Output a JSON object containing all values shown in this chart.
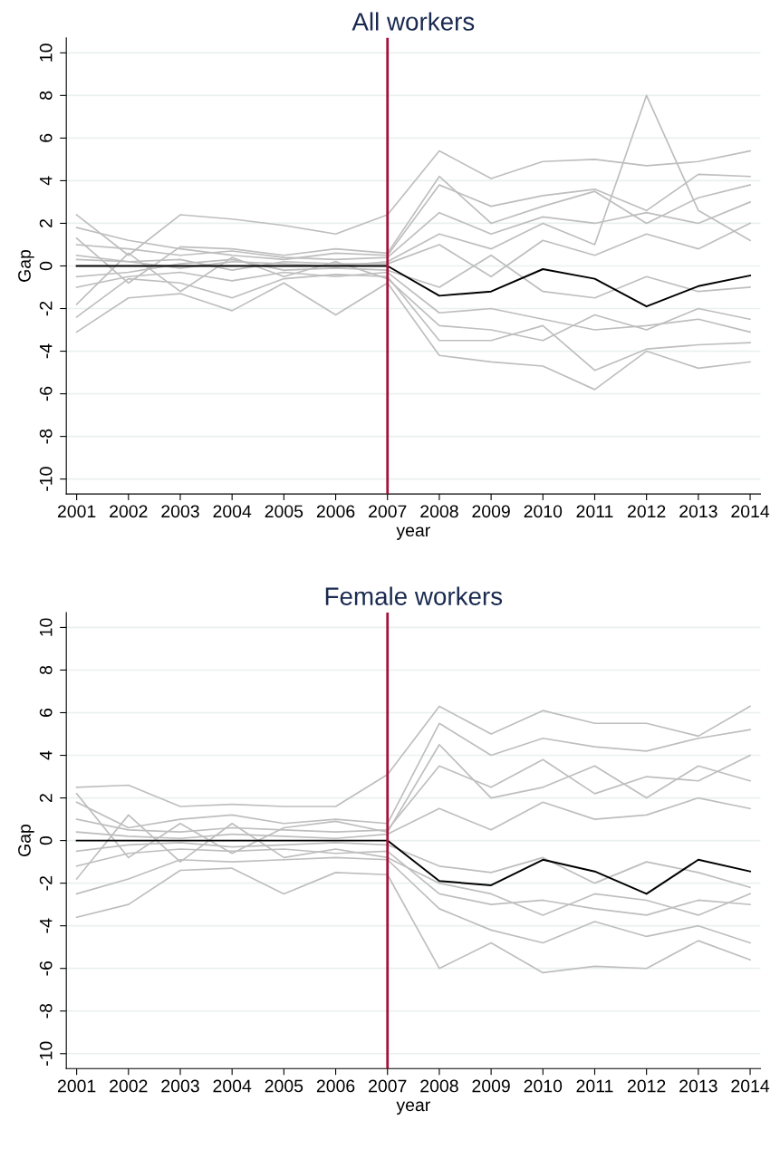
{
  "chart_data": [
    {
      "type": "line",
      "title": "All workers",
      "xlabel": "year",
      "ylabel": "Gap",
      "x": [
        2001,
        2002,
        2003,
        2004,
        2005,
        2006,
        2007,
        2008,
        2009,
        2010,
        2011,
        2012,
        2013,
        2014
      ],
      "xlim": [
        2000.8,
        2014.2
      ],
      "xticks": [
        2001,
        2002,
        2003,
        2004,
        2005,
        2006,
        2007,
        2008,
        2009,
        2010,
        2011,
        2012,
        2013,
        2014
      ],
      "ylim": [
        -10.7,
        10.7
      ],
      "yticks": [
        -10,
        -8,
        -6,
        -4,
        -2,
        0,
        2,
        4,
        6,
        8,
        10
      ],
      "grid": "y",
      "legend": false,
      "marker": "none",
      "line_style": "solid",
      "ref_lines": [
        {
          "axis": "x",
          "value": 2007,
          "color": "#a3123a"
        }
      ],
      "series": [
        {
          "color": "#bebebe",
          "values": [
            2.4,
            0.5,
            2.4,
            2.2,
            1.9,
            1.5,
            2.4,
            5.4,
            4.1,
            4.9,
            5.0,
            4.7,
            4.9,
            5.4
          ]
        },
        {
          "color": "#bebebe",
          "values": [
            -3.1,
            -1.5,
            -1.3,
            -2.1,
            -0.8,
            -2.3,
            -0.8,
            -4.2,
            -4.5,
            -4.7,
            -5.8,
            -4.0,
            -4.8,
            -4.5
          ]
        },
        {
          "color": "#bebebe",
          "values": [
            0.3,
            0.2,
            -0.1,
            0.2,
            0.1,
            0.0,
            0.2,
            1.5,
            0.8,
            2.0,
            1.0,
            8.0,
            2.6,
            1.2
          ]
        },
        {
          "color": "#bebebe",
          "values": [
            1.8,
            1.2,
            0.8,
            0.5,
            0.3,
            0.6,
            0.5,
            3.8,
            2.8,
            3.3,
            3.6,
            2.6,
            4.3,
            4.2
          ]
        },
        {
          "color": "#bebebe",
          "values": [
            -2.4,
            -0.6,
            -0.8,
            -1.5,
            -0.6,
            -0.4,
            -0.5,
            -3.5,
            -3.5,
            -2.8,
            -4.9,
            -3.9,
            -3.7,
            -3.6
          ]
        },
        {
          "color": "#bebebe",
          "values": [
            1.0,
            0.8,
            0.5,
            0.7,
            0.4,
            0.3,
            0.4,
            2.5,
            1.5,
            2.3,
            2.0,
            2.5,
            2.0,
            3.0
          ]
        },
        {
          "color": "#bebebe",
          "values": [
            -1.0,
            -0.5,
            -0.3,
            -0.7,
            -0.3,
            -0.5,
            -0.3,
            -2.2,
            -2.0,
            -2.5,
            -3.0,
            -2.8,
            -2.5,
            -3.1
          ]
        },
        {
          "color": "#bebebe",
          "values": [
            0.5,
            0.2,
            0.3,
            -0.2,
            0.2,
            0.1,
            0.1,
            1.0,
            -0.5,
            1.2,
            0.5,
            1.5,
            0.8,
            2.0
          ]
        },
        {
          "color": "#bebebe",
          "values": [
            -0.5,
            -0.3,
            0.1,
            0.3,
            -0.2,
            -0.1,
            -0.2,
            -1.0,
            0.5,
            -1.2,
            -1.5,
            -0.5,
            -1.2,
            -1.0
          ]
        },
        {
          "color": "#bebebe",
          "values": [
            1.3,
            -0.8,
            0.9,
            0.8,
            0.5,
            0.8,
            0.6,
            4.2,
            2.0,
            2.8,
            3.5,
            2.0,
            3.2,
            3.8
          ]
        },
        {
          "color": "#bebebe",
          "values": [
            -1.8,
            0.6,
            -1.2,
            0.4,
            -0.5,
            0.2,
            -0.6,
            -2.8,
            -3.0,
            -3.5,
            -2.3,
            -3.0,
            -2.0,
            -2.5
          ]
        },
        {
          "color": "#000000",
          "values": [
            0,
            0,
            0,
            0,
            0,
            0,
            0,
            -1.4,
            -1.2,
            -0.15,
            -0.6,
            -1.9,
            -0.95,
            -0.45
          ]
        }
      ]
    },
    {
      "type": "line",
      "title": "Female workers",
      "xlabel": "year",
      "ylabel": "Gap",
      "x": [
        2001,
        2002,
        2003,
        2004,
        2005,
        2006,
        2007,
        2008,
        2009,
        2010,
        2011,
        2012,
        2013,
        2014
      ],
      "xlim": [
        2000.8,
        2014.2
      ],
      "xticks": [
        2001,
        2002,
        2003,
        2004,
        2005,
        2006,
        2007,
        2008,
        2009,
        2010,
        2011,
        2012,
        2013,
        2014
      ],
      "ylim": [
        -10.7,
        10.7
      ],
      "yticks": [
        -10,
        -8,
        -6,
        -4,
        -2,
        0,
        2,
        4,
        6,
        8,
        10
      ],
      "grid": "y",
      "legend": false,
      "marker": "none",
      "line_style": "solid",
      "ref_lines": [
        {
          "axis": "x",
          "value": 2007,
          "color": "#a3123a"
        }
      ],
      "series": [
        {
          "color": "#bebebe",
          "values": [
            2.5,
            2.6,
            1.6,
            1.7,
            1.6,
            1.6,
            3.1,
            6.3,
            5.0,
            6.1,
            5.5,
            5.5,
            4.9,
            6.3
          ]
        },
        {
          "color": "#bebebe",
          "values": [
            -3.6,
            -3.0,
            -1.4,
            -1.3,
            -2.5,
            -1.5,
            -1.6,
            -6.0,
            -4.8,
            -6.2,
            -5.9,
            -6.0,
            -4.7,
            -5.6
          ]
        },
        {
          "color": "#bebebe",
          "values": [
            1.8,
            0.6,
            1.0,
            1.2,
            0.8,
            1.0,
            0.8,
            5.5,
            4.0,
            4.8,
            4.4,
            4.2,
            4.8,
            5.2
          ]
        },
        {
          "color": "#bebebe",
          "values": [
            -2.5,
            -1.8,
            -0.9,
            -1.0,
            -0.9,
            -0.8,
            -0.9,
            -3.2,
            -4.2,
            -4.8,
            -3.8,
            -4.5,
            -4.0,
            -4.8
          ]
        },
        {
          "color": "#bebebe",
          "values": [
            1.0,
            0.5,
            0.4,
            0.6,
            0.5,
            0.4,
            0.5,
            3.5,
            2.5,
            3.8,
            2.2,
            3.0,
            2.8,
            4.0
          ]
        },
        {
          "color": "#bebebe",
          "values": [
            -1.2,
            -0.6,
            -0.4,
            -0.5,
            -0.4,
            -0.6,
            -0.5,
            -2.5,
            -3.0,
            -2.8,
            -3.2,
            -3.5,
            -2.8,
            -3.0
          ]
        },
        {
          "color": "#bebebe",
          "values": [
            0.4,
            0.2,
            0.1,
            0.3,
            0.2,
            0.1,
            0.3,
            1.5,
            0.5,
            1.8,
            1.0,
            1.2,
            2.0,
            1.5
          ]
        },
        {
          "color": "#bebebe",
          "values": [
            -0.5,
            -0.2,
            -0.1,
            -0.3,
            -0.2,
            -0.1,
            -0.2,
            -1.2,
            -1.5,
            -0.8,
            -2.0,
            -1.0,
            -1.5,
            -2.2
          ]
        },
        {
          "color": "#bebebe",
          "values": [
            2.2,
            -0.8,
            0.8,
            -0.6,
            0.6,
            0.9,
            0.4,
            4.5,
            2.0,
            2.5,
            3.5,
            2.0,
            3.5,
            2.8
          ]
        },
        {
          "color": "#bebebe",
          "values": [
            -1.8,
            1.2,
            -1.0,
            0.8,
            -0.8,
            -0.4,
            -0.8,
            -2.0,
            -2.5,
            -3.5,
            -2.5,
            -2.8,
            -3.5,
            -2.5
          ]
        },
        {
          "color": "#000000",
          "values": [
            0,
            0,
            0,
            0,
            0,
            0,
            0,
            -1.9,
            -2.1,
            -0.9,
            -1.45,
            -2.5,
            -0.9,
            -1.45
          ]
        }
      ]
    }
  ]
}
